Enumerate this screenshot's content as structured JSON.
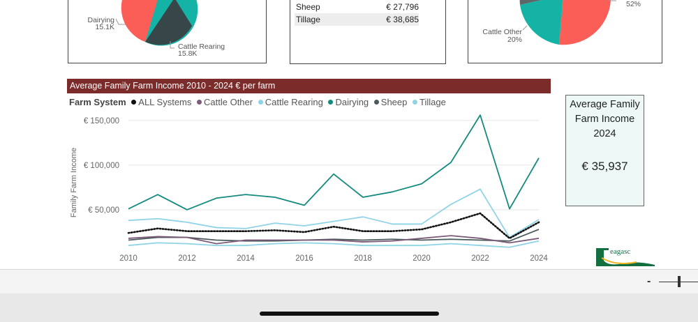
{
  "left_pie": {
    "labels": [
      {
        "name": "Dairying",
        "value": "15.1K"
      },
      {
        "name": "Cattle Rearing",
        "value": "15.8K"
      }
    ]
  },
  "table": {
    "rows": [
      {
        "name": "Sheep",
        "value": "€ 27,796"
      },
      {
        "name": "Tillage",
        "value": "€ 38,685"
      }
    ]
  },
  "right_pie": {
    "labels": [
      {
        "name": "Cattle Other",
        "value": "20%"
      },
      {
        "name": "",
        "value": "52%"
      }
    ]
  },
  "chart_header": "Average Family Farm Income 2010 - 2024  € per farm",
  "legend": {
    "title": "Farm System",
    "items": [
      {
        "name": "ALL Systems",
        "color": "#111111"
      },
      {
        "name": "Cattle Other",
        "color": "#7a5a78"
      },
      {
        "name": "Cattle Rearing",
        "color": "#8fd3e6"
      },
      {
        "name": "Dairying",
        "color": "#148a7e"
      },
      {
        "name": "Sheep",
        "color": "#4a5a5c"
      },
      {
        "name": "Tillage",
        "color": "#8fd3e6"
      }
    ]
  },
  "kpi": {
    "title": "Average Family Farm Income 2024",
    "value": "€ 35,937"
  },
  "logo_text": "eagasc",
  "zoom_out_label": "-",
  "chart_data": {
    "type": "line",
    "title": "Average Family Farm Income 2010 - 2024  € per farm",
    "xlabel": "",
    "ylabel": "Family Farm Income",
    "x": [
      2010,
      2011,
      2012,
      2013,
      2014,
      2015,
      2016,
      2017,
      2018,
      2019,
      2020,
      2021,
      2022,
      2023,
      2024
    ],
    "xticks": [
      2010,
      2012,
      2014,
      2016,
      2018,
      2020,
      2022,
      2024
    ],
    "yticks": [
      50000,
      100000,
      150000
    ],
    "ytick_labels": [
      "€ 50,000",
      "€ 100,000",
      "€ 150,000"
    ],
    "ylim": [
      0,
      160000
    ],
    "grid": true,
    "legend_position": "top-left",
    "series": [
      {
        "name": "Dairying",
        "color": "#148a7e",
        "style": "solid",
        "values": [
          51000,
          67000,
          50000,
          63000,
          67000,
          64000,
          55000,
          90000,
          64000,
          70000,
          79000,
          103000,
          156000,
          51000,
          108000
        ]
      },
      {
        "name": "Tillage",
        "color": "#8fd3e6",
        "style": "solid",
        "values": [
          38000,
          40000,
          36000,
          30000,
          29000,
          35000,
          32000,
          37000,
          42000,
          34000,
          34000,
          56000,
          73000,
          19000,
          39000
        ]
      },
      {
        "name": "ALL Systems",
        "color": "#111111",
        "style": "dotted",
        "values": [
          24000,
          29000,
          26000,
          26000,
          26000,
          27000,
          25000,
          31000,
          26000,
          26000,
          28000,
          36000,
          46000,
          18000,
          36000
        ]
      },
      {
        "name": "Sheep",
        "color": "#4a5a5c",
        "style": "solid",
        "values": [
          16000,
          19000,
          19000,
          16000,
          15000,
          15000,
          16000,
          17000,
          16000,
          17000,
          16000,
          17000,
          16000,
          15000,
          28000
        ]
      },
      {
        "name": "Cattle Other",
        "color": "#7a5a78",
        "style": "solid",
        "values": [
          18000,
          20000,
          19000,
          12000,
          16000,
          16000,
          16000,
          16000,
          14000,
          15000,
          18000,
          21000,
          18000,
          13000,
          18000
        ]
      },
      {
        "name": "Cattle Rearing",
        "color": "#8fd3e6",
        "style": "solid",
        "values": [
          10000,
          13000,
          12000,
          10000,
          10000,
          12000,
          13000,
          12000,
          10000,
          10000,
          10000,
          12000,
          10000,
          8000,
          15000
        ]
      }
    ]
  }
}
